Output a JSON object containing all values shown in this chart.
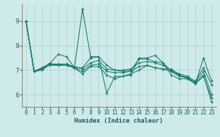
{
  "title": "",
  "xlabel": "Humidex (Indice chaleur)",
  "ylabel": "",
  "background_color": "#ceeaea",
  "grid_color": "#b8d4d4",
  "line_color": "#1a7a6e",
  "xlim": [
    -0.5,
    23.5
  ],
  "ylim": [
    5.5,
    9.7
  ],
  "xticks": [
    0,
    1,
    2,
    3,
    4,
    5,
    6,
    7,
    8,
    9,
    10,
    11,
    12,
    13,
    14,
    15,
    16,
    17,
    18,
    19,
    20,
    21,
    22,
    23
  ],
  "yticks": [
    6,
    7,
    8,
    9
  ],
  "series": [
    [
      9.0,
      6.95,
      7.1,
      7.3,
      7.65,
      7.55,
      7.1,
      9.5,
      7.55,
      7.55,
      6.05,
      6.75,
      6.75,
      6.8,
      7.5,
      7.5,
      7.6,
      7.3,
      6.8,
      6.65,
      6.65,
      6.45,
      7.5,
      6.55
    ],
    [
      9.0,
      6.95,
      7.05,
      7.25,
      7.2,
      7.2,
      7.1,
      7.1,
      7.5,
      7.55,
      7.2,
      7.0,
      6.95,
      7.0,
      7.45,
      7.45,
      7.35,
      7.3,
      6.95,
      6.75,
      6.7,
      6.45,
      6.8,
      5.7
    ],
    [
      9.0,
      6.95,
      7.1,
      7.2,
      7.2,
      7.2,
      7.1,
      6.85,
      7.15,
      7.15,
      6.8,
      6.65,
      6.75,
      6.85,
      7.0,
      7.2,
      7.1,
      7.05,
      7.05,
      6.8,
      6.65,
      6.45,
      6.75,
      5.85
    ],
    [
      9.0,
      6.95,
      7.05,
      7.25,
      7.25,
      7.25,
      7.15,
      7.05,
      7.3,
      7.4,
      7.05,
      7.0,
      7.0,
      7.05,
      7.3,
      7.35,
      7.3,
      7.2,
      7.0,
      6.85,
      6.75,
      6.55,
      7.1,
      6.4
    ],
    [
      9.0,
      6.95,
      7.0,
      7.25,
      7.2,
      7.25,
      7.1,
      6.95,
      7.2,
      7.25,
      6.95,
      6.9,
      6.9,
      6.95,
      7.15,
      7.2,
      7.1,
      7.05,
      6.95,
      6.8,
      6.7,
      6.5,
      6.95,
      6.0
    ]
  ],
  "marker": "+",
  "markersize": 3.5,
  "linewidth": 0.8
}
